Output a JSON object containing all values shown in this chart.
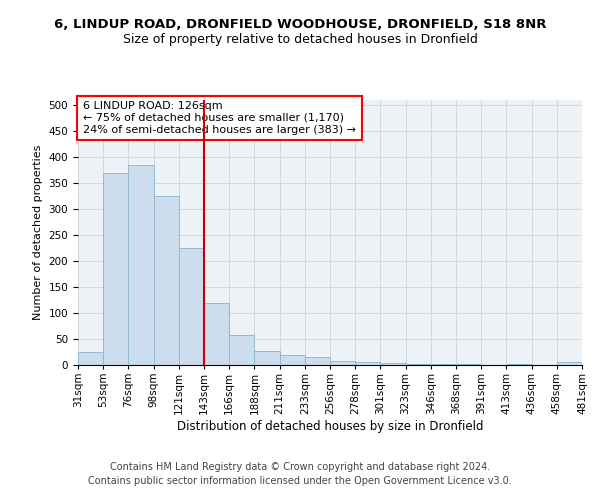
{
  "title": "6, LINDUP ROAD, DRONFIELD WOODHOUSE, DRONFIELD, S18 8NR",
  "subtitle": "Size of property relative to detached houses in Dronfield",
  "xlabel": "Distribution of detached houses by size in Dronfield",
  "ylabel": "Number of detached properties",
  "bin_labels": [
    "31sqm",
    "53sqm",
    "76sqm",
    "98sqm",
    "121sqm",
    "143sqm",
    "166sqm",
    "188sqm",
    "211sqm",
    "233sqm",
    "256sqm",
    "278sqm",
    "301sqm",
    "323sqm",
    "346sqm",
    "368sqm",
    "391sqm",
    "413sqm",
    "436sqm",
    "458sqm",
    "481sqm"
  ],
  "bar_heights": [
    25,
    370,
    385,
    325,
    225,
    120,
    57,
    27,
    20,
    15,
    8,
    5,
    3,
    2,
    2,
    1,
    0,
    1,
    0,
    5
  ],
  "bar_color": "#ccdded",
  "bar_edge_color": "#8ab4cc",
  "grid_color": "#d0d8e0",
  "vline_color": "#cc0000",
  "annotation_box_text": "6 LINDUP ROAD: 126sqm\n← 75% of detached houses are smaller (1,170)\n24% of semi-detached houses are larger (383) →",
  "ylim": [
    0,
    510
  ],
  "yticks": [
    0,
    50,
    100,
    150,
    200,
    250,
    300,
    350,
    400,
    450,
    500
  ],
  "footer_line1": "Contains HM Land Registry data © Crown copyright and database right 2024.",
  "footer_line2": "Contains public sector information licensed under the Open Government Licence v3.0.",
  "title_fontsize": 9.5,
  "subtitle_fontsize": 9,
  "ylabel_fontsize": 8,
  "xlabel_fontsize": 8.5,
  "tick_fontsize": 7.5,
  "annotation_fontsize": 8,
  "footer_fontsize": 7
}
